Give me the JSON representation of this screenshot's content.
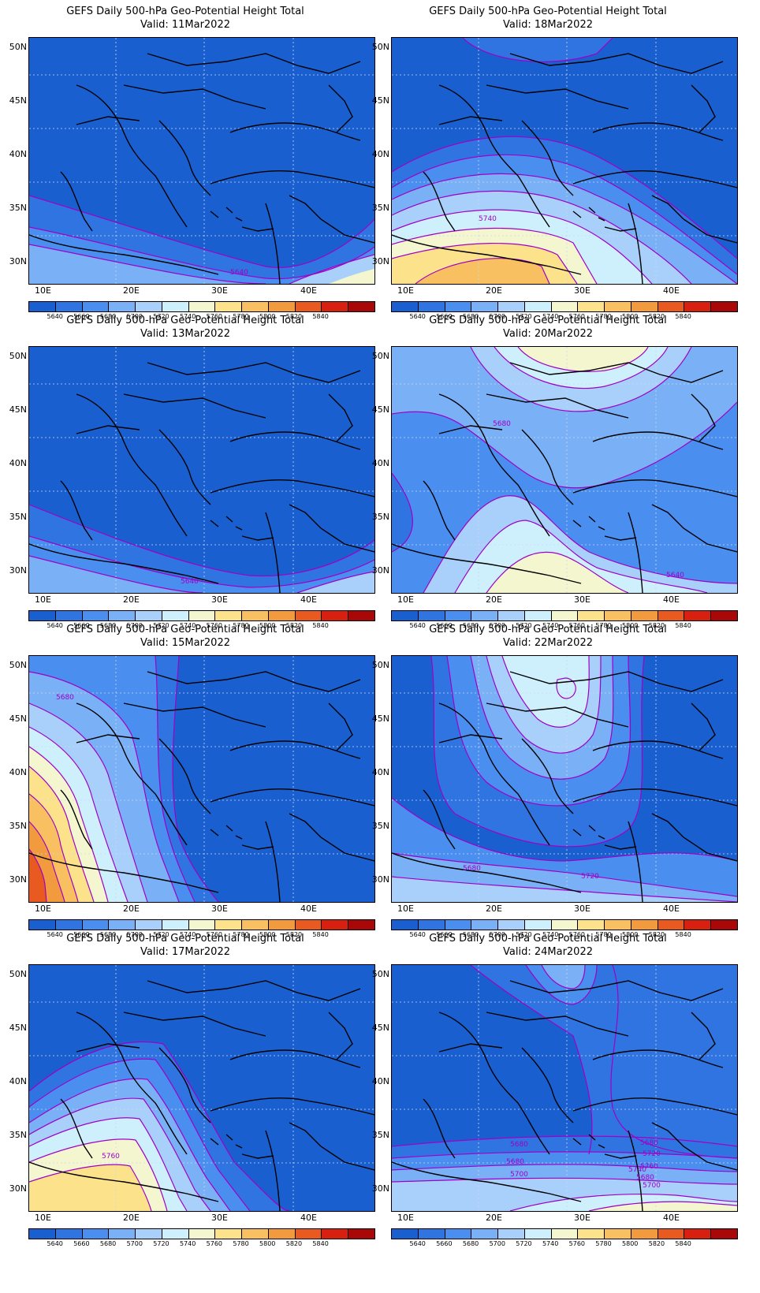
{
  "title_line": "GEFS Daily 500-hPa Geo-Potential Height Total",
  "lat_labels": [
    "50N",
    "45N",
    "40N",
    "35N",
    "30N"
  ],
  "lon_labels": [
    "10E",
    "20E",
    "30E",
    "40E"
  ],
  "colorbar": {
    "values": [
      "5640",
      "5660",
      "5680",
      "5700",
      "5720",
      "5740",
      "5760",
      "5780",
      "5800",
      "5820",
      "5840"
    ],
    "colors": [
      "#1a5fd0",
      "#2f74e0",
      "#4a8ef0",
      "#7ab0f5",
      "#a8d0fa",
      "#cdf0fc",
      "#f4f6d0",
      "#fce28a",
      "#f8c060",
      "#f29a3e",
      "#e85a20",
      "#d82010",
      "#a80808"
    ]
  },
  "contour_color": "#a000c8",
  "panels": [
    {
      "valid": "Valid: 11Mar2022",
      "labels": [
        "5640"
      ]
    },
    {
      "valid": "Valid: 18Mar2022",
      "labels": [
        "5740"
      ]
    },
    {
      "valid": "Valid: 13Mar2022",
      "labels": [
        "5640"
      ]
    },
    {
      "valid": "Valid: 20Mar2022",
      "labels": [
        "5680",
        "5640"
      ]
    },
    {
      "valid": "Valid: 15Mar2022",
      "labels": [
        "5680"
      ]
    },
    {
      "valid": "Valid: 22Mar2022",
      "labels": [
        "5680",
        "5720"
      ]
    },
    {
      "valid": "Valid: 17Mar2022",
      "labels": [
        "5760"
      ]
    },
    {
      "valid": "Valid: 24Mar2022",
      "labels": [
        "5680",
        "5680",
        "5700",
        "5680",
        "5720",
        "5740",
        "5760",
        "5680",
        "5700"
      ]
    }
  ]
}
